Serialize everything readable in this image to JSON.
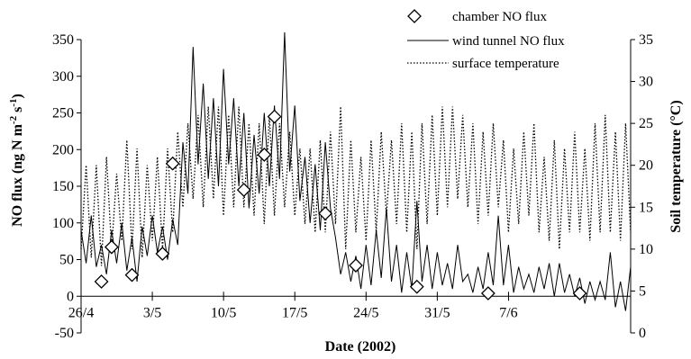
{
  "chart_data": {
    "type": "line",
    "title": "",
    "xlabel": "Date (2002)",
    "ylabel": "NO flux (ng N m-2 s-1)",
    "ylabel_parts": {
      "pre": "NO flux (ng N m",
      "exp1": "-2",
      "mid": " s",
      "exp2": "-1",
      "post": ")"
    },
    "y2label": "Soil temperature (°C)",
    "ylim": [
      -50,
      350
    ],
    "y2lim": [
      0,
      35
    ],
    "xlim": [
      "2002-04-26",
      "2002-06-19"
    ],
    "x_ticks": [
      "26/4",
      "3/5",
      "10/5",
      "17/5",
      "24/5",
      "31/5",
      "7/6"
    ],
    "x_tick_dates": [
      "2002-04-26",
      "2002-05-03",
      "2002-05-10",
      "2002-05-17",
      "2002-05-24",
      "2002-05-31",
      "2002-06-07"
    ],
    "y_ticks": [
      "-50",
      "0",
      "50",
      "100",
      "150",
      "200",
      "250",
      "300",
      "350"
    ],
    "y2_ticks": [
      "0",
      "5",
      "10",
      "15",
      "20",
      "25",
      "30",
      "35"
    ],
    "legend_position": "top-right",
    "legend": [
      "chamber NO flux",
      "wind tunnel NO flux",
      "surface temperature"
    ],
    "series": [
      {
        "name": "chamber NO flux",
        "style": "diamond-markers",
        "x": [
          "2002-04-28",
          "2002-04-29",
          "2002-05-01",
          "2002-05-04",
          "2002-05-05",
          "2002-05-12",
          "2002-05-14",
          "2002-05-15",
          "2002-05-20",
          "2002-05-23",
          "2002-05-29",
          "2002-06-05",
          "2002-06-14"
        ],
        "y": [
          20,
          67,
          29,
          58,
          181,
          145,
          193,
          245,
          113,
          42,
          13,
          4,
          4
        ]
      },
      {
        "name": "wind tunnel NO flux",
        "style": "solid-line",
        "x": [
          "2002-04-26",
          "2002-04-26 12:00",
          "2002-04-27",
          "2002-04-27 12:00",
          "2002-04-28",
          "2002-04-28 12:00",
          "2002-04-29",
          "2002-04-29 12:00",
          "2002-04-30",
          "2002-04-30 12:00",
          "2002-05-01",
          "2002-05-01 12:00",
          "2002-05-02",
          "2002-05-02 12:00",
          "2002-05-03",
          "2002-05-03 12:00",
          "2002-05-04",
          "2002-05-04 12:00",
          "2002-05-05",
          "2002-05-05 12:00",
          "2002-05-06",
          "2002-05-06 12:00",
          "2002-05-07",
          "2002-05-07 12:00",
          "2002-05-08",
          "2002-05-08 12:00",
          "2002-05-09",
          "2002-05-09 12:00",
          "2002-05-10",
          "2002-05-10 12:00",
          "2002-05-11",
          "2002-05-11 12:00",
          "2002-05-12",
          "2002-05-12 12:00",
          "2002-05-13",
          "2002-05-13 12:00",
          "2002-05-14",
          "2002-05-14 12:00",
          "2002-05-15",
          "2002-05-15 12:00",
          "2002-05-16",
          "2002-05-16 12:00",
          "2002-05-17",
          "2002-05-17 12:00",
          "2002-05-18",
          "2002-05-18 12:00",
          "2002-05-19",
          "2002-05-19 12:00",
          "2002-05-20",
          "2002-05-20 12:00",
          "2002-05-21",
          "2002-05-21 12:00",
          "2002-05-22",
          "2002-05-22 12:00",
          "2002-05-23",
          "2002-05-23 12:00",
          "2002-05-24",
          "2002-05-24 12:00",
          "2002-05-25",
          "2002-05-25 12:00",
          "2002-05-26",
          "2002-05-26 12:00",
          "2002-05-27",
          "2002-05-27 12:00",
          "2002-05-28",
          "2002-05-28 12:00",
          "2002-05-29",
          "2002-05-29 12:00",
          "2002-05-30",
          "2002-05-30 12:00",
          "2002-05-31",
          "2002-05-31 12:00",
          "2002-06-01",
          "2002-06-01 12:00",
          "2002-06-02",
          "2002-06-02 12:00",
          "2002-06-03",
          "2002-06-03 12:00",
          "2002-06-04",
          "2002-06-04 12:00",
          "2002-06-05",
          "2002-06-05 12:00",
          "2002-06-06",
          "2002-06-06 12:00",
          "2002-06-07",
          "2002-06-07 12:00",
          "2002-06-08",
          "2002-06-08 12:00",
          "2002-06-09",
          "2002-06-09 12:00",
          "2002-06-10",
          "2002-06-10 12:00",
          "2002-06-11",
          "2002-06-11 12:00",
          "2002-06-12",
          "2002-06-12 12:00",
          "2002-06-13",
          "2002-06-13 12:00",
          "2002-06-14",
          "2002-06-14 12:00",
          "2002-06-15",
          "2002-06-15 12:00",
          "2002-06-16",
          "2002-06-16 12:00",
          "2002-06-17",
          "2002-06-17 12:00",
          "2002-06-18",
          "2002-06-18 12:00",
          "2002-06-19"
        ],
        "y": [
          90,
          45,
          110,
          40,
          70,
          30,
          90,
          45,
          100,
          35,
          80,
          20,
          95,
          55,
          110,
          60,
          95,
          50,
          105,
          70,
          210,
          140,
          340,
          180,
          290,
          160,
          270,
          150,
          310,
          180,
          270,
          150,
          250,
          120,
          220,
          140,
          250,
          150,
          260,
          160,
          360,
          170,
          260,
          130,
          190,
          100,
          180,
          90,
          210,
          120,
          80,
          30,
          60,
          20,
          55,
          10,
          70,
          15,
          90,
          25,
          120,
          20,
          70,
          5,
          60,
          10,
          130,
          20,
          70,
          10,
          60,
          15,
          45,
          10,
          70,
          20,
          30,
          5,
          40,
          10,
          60,
          15,
          110,
          15,
          70,
          5,
          40,
          10,
          30,
          5,
          40,
          10,
          45,
          0,
          45,
          5,
          30,
          0,
          25,
          -10,
          20,
          -5,
          20,
          -5,
          60,
          -15,
          20,
          -20,
          40
        ]
      },
      {
        "name": "surface temperature",
        "style": "dotted-line",
        "x": [
          "2002-04-26",
          "2002-04-26 12:00",
          "2002-04-27",
          "2002-04-27 12:00",
          "2002-04-28",
          "2002-04-28 12:00",
          "2002-04-29",
          "2002-04-29 12:00",
          "2002-04-30",
          "2002-04-30 12:00",
          "2002-05-01",
          "2002-05-01 12:00",
          "2002-05-02",
          "2002-05-02 12:00",
          "2002-05-03",
          "2002-05-03 12:00",
          "2002-05-04",
          "2002-05-04 12:00",
          "2002-05-05",
          "2002-05-05 12:00",
          "2002-05-06",
          "2002-05-06 12:00",
          "2002-05-07",
          "2002-05-07 12:00",
          "2002-05-08",
          "2002-05-08 12:00",
          "2002-05-09",
          "2002-05-09 12:00",
          "2002-05-10",
          "2002-05-10 12:00",
          "2002-05-11",
          "2002-05-11 12:00",
          "2002-05-12",
          "2002-05-12 12:00",
          "2002-05-13",
          "2002-05-13 12:00",
          "2002-05-14",
          "2002-05-14 12:00",
          "2002-05-15",
          "2002-05-15 12:00",
          "2002-05-16",
          "2002-05-16 12:00",
          "2002-05-17",
          "2002-05-17 12:00",
          "2002-05-18",
          "2002-05-18 12:00",
          "2002-05-19",
          "2002-05-19 12:00",
          "2002-05-20",
          "2002-05-20 12:00",
          "2002-05-21",
          "2002-05-21 12:00",
          "2002-05-22",
          "2002-05-22 12:00",
          "2002-05-23",
          "2002-05-23 12:00",
          "2002-05-24",
          "2002-05-24 12:00",
          "2002-05-25",
          "2002-05-25 12:00",
          "2002-05-26",
          "2002-05-26 12:00",
          "2002-05-27",
          "2002-05-27 12:00",
          "2002-05-28",
          "2002-05-28 12:00",
          "2002-05-29",
          "2002-05-29 12:00",
          "2002-05-30",
          "2002-05-30 12:00",
          "2002-05-31",
          "2002-05-31 12:00",
          "2002-06-01",
          "2002-06-01 12:00",
          "2002-06-02",
          "2002-06-02 12:00",
          "2002-06-03",
          "2002-06-03 12:00",
          "2002-06-04",
          "2002-06-04 12:00",
          "2002-06-05",
          "2002-06-05 12:00",
          "2002-06-06",
          "2002-06-06 12:00",
          "2002-06-07",
          "2002-06-07 12:00",
          "2002-06-08",
          "2002-06-08 12:00",
          "2002-06-09",
          "2002-06-09 12:00",
          "2002-06-10",
          "2002-06-10 12:00",
          "2002-06-11",
          "2002-06-11 12:00",
          "2002-06-12",
          "2002-06-12 12:00",
          "2002-06-13",
          "2002-06-13 12:00",
          "2002-06-14",
          "2002-06-14 12:00",
          "2002-06-15",
          "2002-06-15 12:00",
          "2002-06-16",
          "2002-06-16 12:00",
          "2002-06-17",
          "2002-06-17 12:00",
          "2002-06-18",
          "2002-06-18 12:00",
          "2002-06-19"
        ],
        "y": [
          10,
          20,
          9,
          20,
          8,
          21,
          10,
          19,
          11,
          23,
          10,
          22,
          9,
          20,
          11,
          21,
          10,
          22,
          12,
          24,
          15,
          25,
          16,
          26,
          15,
          27,
          16,
          27,
          14,
          26,
          15,
          27,
          15,
          25,
          14,
          25,
          13,
          26,
          14,
          25,
          15,
          24,
          14,
          22,
          13,
          22,
          12,
          23,
          12,
          24,
          13,
          27,
          10,
          23,
          12,
          21,
          11,
          23,
          12,
          24,
          14,
          23,
          13,
          25,
          12,
          24,
          10,
          25,
          13,
          26,
          14,
          27,
          15,
          27,
          16,
          26,
          15,
          25,
          13,
          24,
          14,
          25,
          15,
          23,
          12,
          22,
          13,
          24,
          14,
          25,
          12,
          21,
          11,
          23,
          10,
          22,
          12,
          24,
          12,
          22,
          11,
          25,
          12,
          26,
          12,
          24,
          11,
          25,
          12
        ]
      }
    ]
  }
}
